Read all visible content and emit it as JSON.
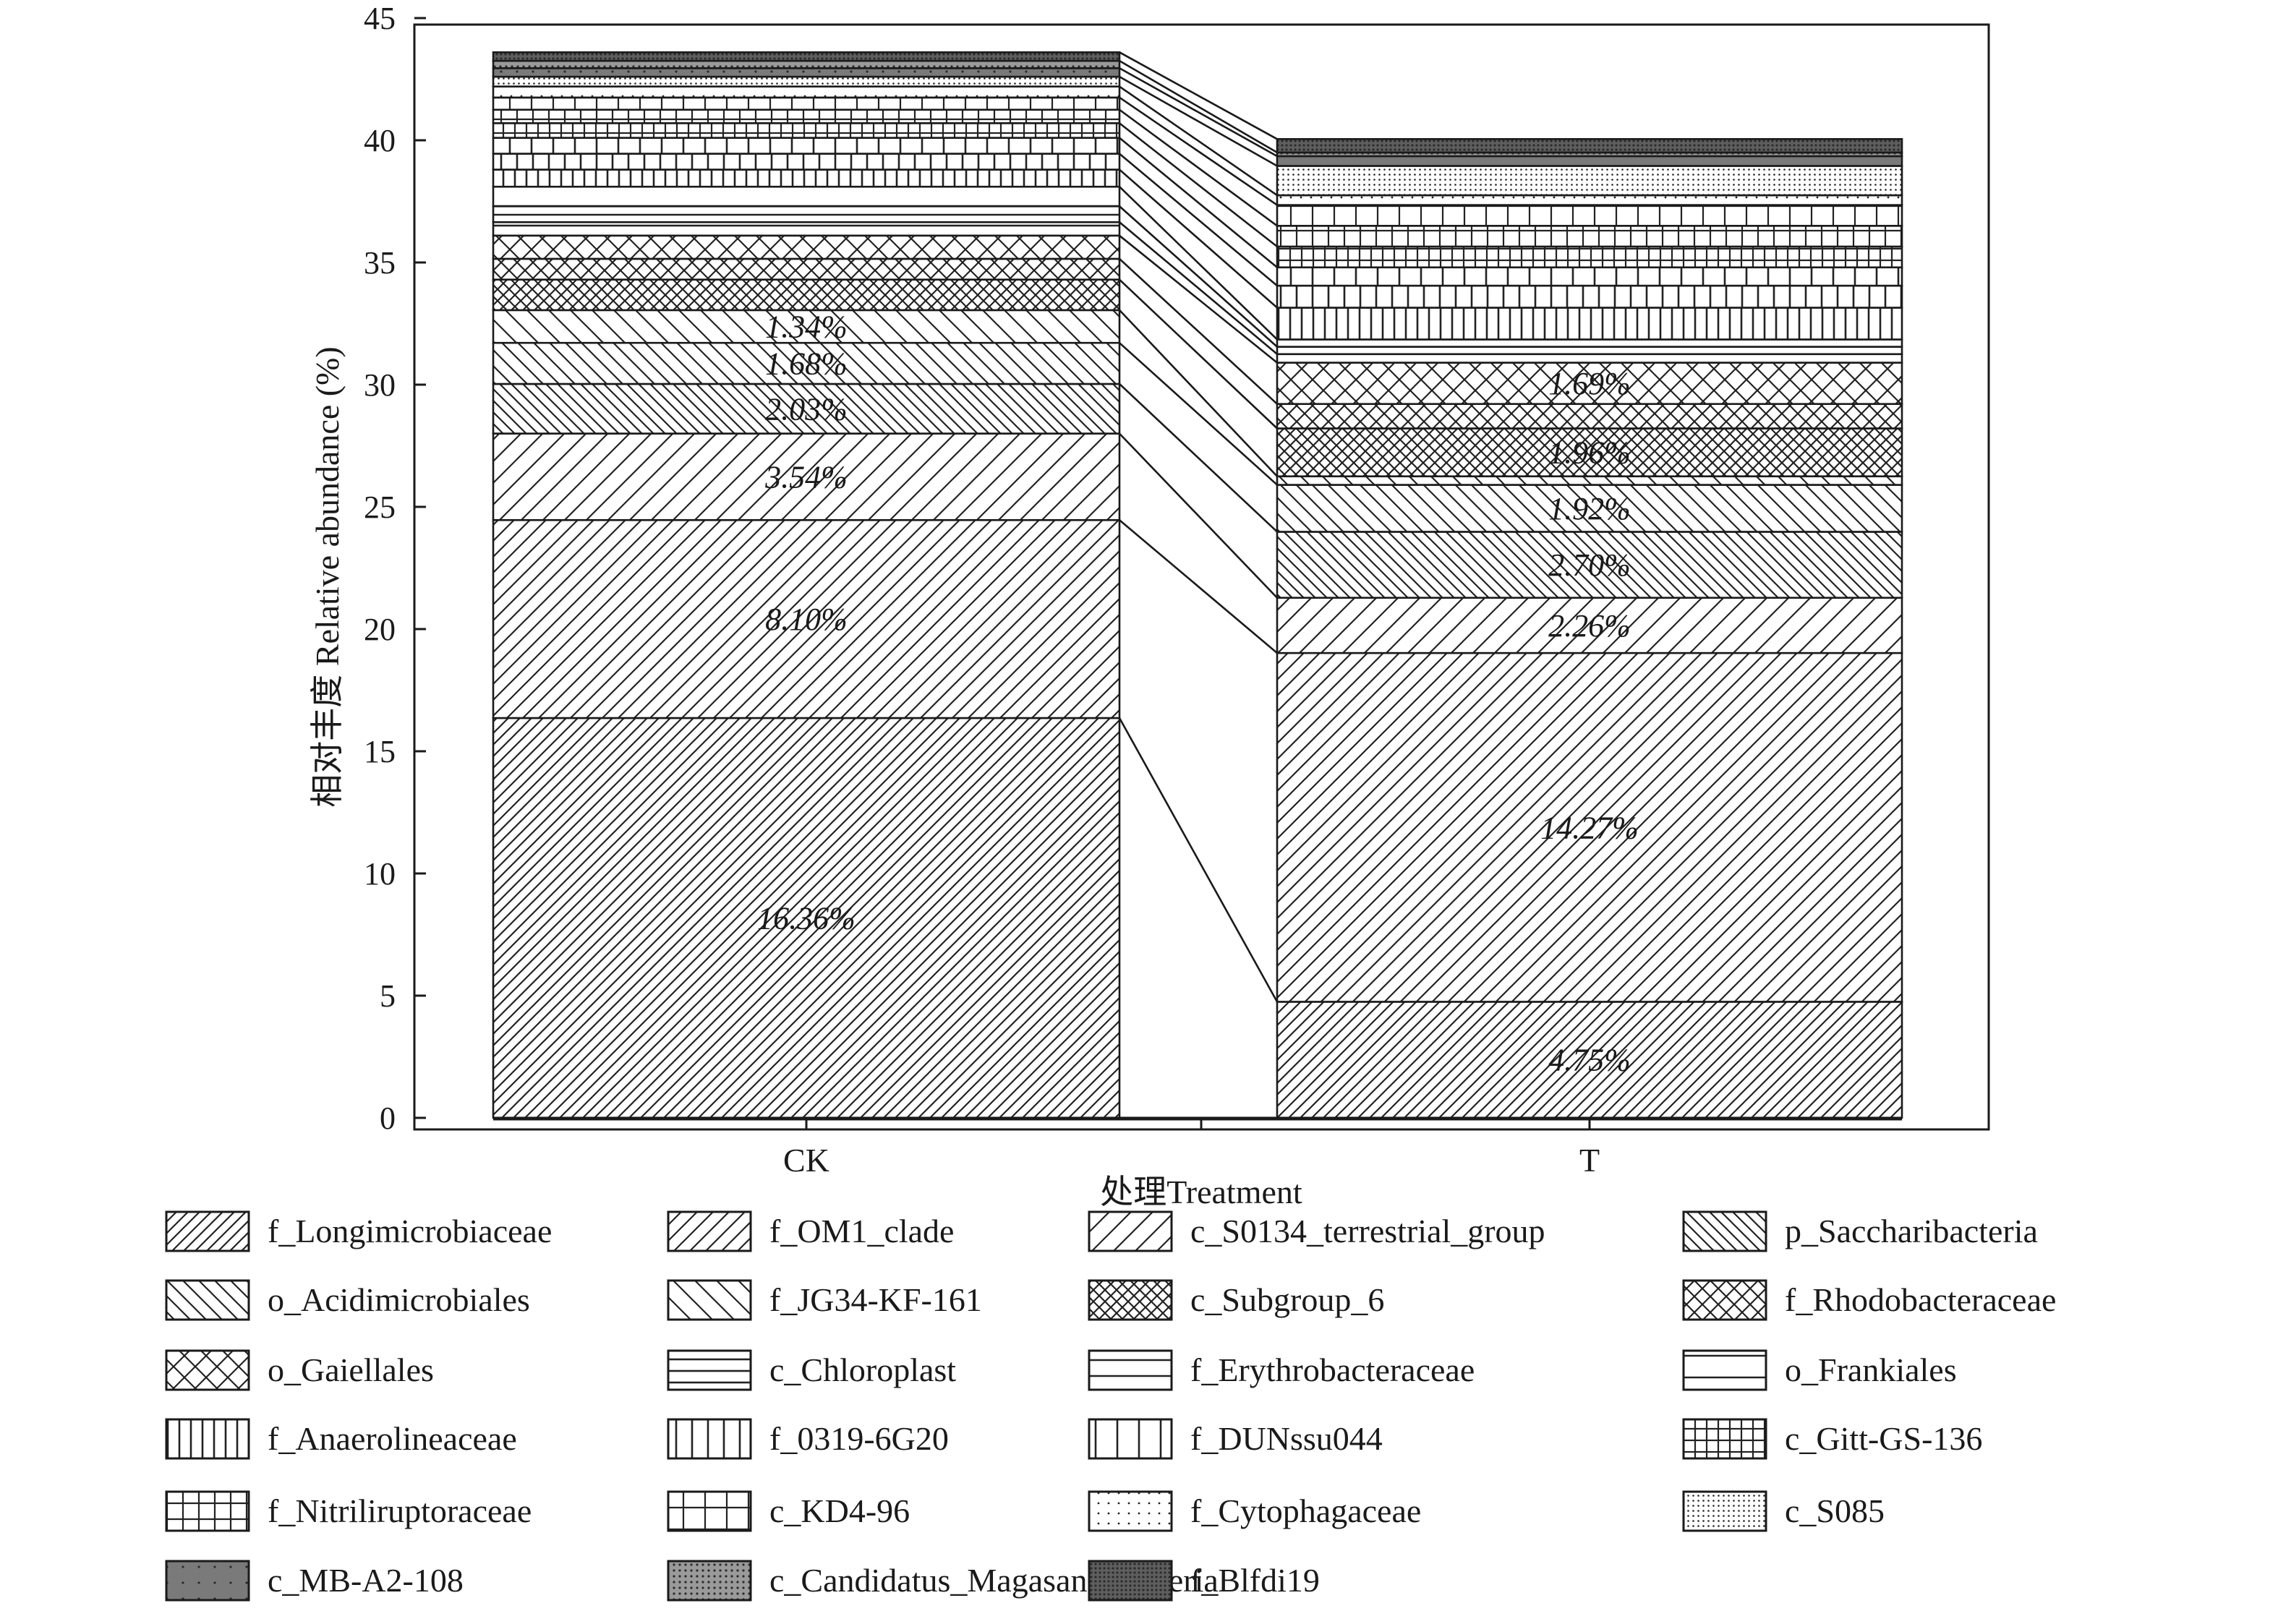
{
  "chart_data": {
    "type": "bar",
    "subtype": "stacked",
    "categories": [
      "CK",
      "T"
    ],
    "xlabel": "处理Treatment",
    "ylabel": "相对丰度 Relative abundance (%)",
    "ylim": [
      0,
      45
    ],
    "yticks": [
      "0",
      "5",
      "10",
      "15",
      "20",
      "25",
      "30",
      "35",
      "40",
      "45"
    ],
    "grid": false,
    "legend_position": "bottom",
    "connect_lines": true,
    "series": [
      {
        "name": "f_Longimicrobiaceae",
        "pattern": "diag-fine",
        "values": [
          16.36,
          4.75
        ],
        "labels": [
          "16.36%",
          "4.75%"
        ]
      },
      {
        "name": "f_OM1_clade",
        "pattern": "diag-medium",
        "values": [
          8.1,
          14.27
        ],
        "labels": [
          "8.10%",
          "14.27%"
        ]
      },
      {
        "name": "c_S0134_terrestrial_group",
        "pattern": "diag-wide",
        "values": [
          3.54,
          2.26
        ],
        "labels": [
          "3.54%",
          "2.26%"
        ]
      },
      {
        "name": "p_Saccharibacteria",
        "pattern": "back-fine",
        "values": [
          2.03,
          2.7
        ],
        "labels": [
          "2.03%",
          "2.70%"
        ]
      },
      {
        "name": "o_Acidimicrobiales",
        "pattern": "back-medium",
        "values": [
          1.68,
          1.92
        ],
        "labels": [
          "1.68%",
          "1.92%"
        ]
      },
      {
        "name": "f_JG34-KF-161",
        "pattern": "back-wide",
        "values": [
          1.34,
          0.35
        ],
        "labels": [
          "1.34%",
          ""
        ]
      },
      {
        "name": "c_Subgroup_6",
        "pattern": "cross-fine",
        "values": [
          1.25,
          1.96
        ],
        "labels": [
          "",
          "1.96%"
        ]
      },
      {
        "name": "f_Rhodobacteraceae",
        "pattern": "cross-medium",
        "values": [
          0.85,
          1.0
        ],
        "labels": [
          "",
          ""
        ]
      },
      {
        "name": "o_Gaiellales",
        "pattern": "cross-wide",
        "values": [
          0.95,
          1.69
        ],
        "labels": [
          "",
          "1.69%"
        ]
      },
      {
        "name": "c_Chloroplast",
        "pattern": "horiz-fine",
        "values": [
          0.55,
          0.35
        ],
        "labels": [
          "",
          ""
        ]
      },
      {
        "name": "f_Erythrobacteraceae",
        "pattern": "horiz-medium",
        "values": [
          0.65,
          0.3
        ],
        "labels": [
          "",
          ""
        ]
      },
      {
        "name": "o_Frankiales",
        "pattern": "horiz-wide",
        "values": [
          0.8,
          0.3
        ],
        "labels": [
          "",
          ""
        ]
      },
      {
        "name": "f_Anaerolineaceae",
        "pattern": "vert-fine",
        "values": [
          0.7,
          1.3
        ],
        "labels": [
          "",
          ""
        ]
      },
      {
        "name": "f_0319-6G20",
        "pattern": "vert-medium",
        "values": [
          0.65,
          0.9
        ],
        "labels": [
          "",
          ""
        ]
      },
      {
        "name": "f_DUNssu044",
        "pattern": "vert-wide",
        "values": [
          0.65,
          0.75
        ],
        "labels": [
          "",
          ""
        ]
      },
      {
        "name": "c_Gitt-GS-136",
        "pattern": "grid-fine",
        "values": [
          0.6,
          0.85
        ],
        "labels": [
          "",
          ""
        ]
      },
      {
        "name": "f_Nitriliruptoraceae",
        "pattern": "grid-medium",
        "values": [
          0.55,
          0.85
        ],
        "labels": [
          "",
          ""
        ]
      },
      {
        "name": "c_KD4-96",
        "pattern": "grid-wide",
        "values": [
          0.5,
          0.85
        ],
        "labels": [
          "",
          ""
        ]
      },
      {
        "name": "f_Cytophagaceae",
        "pattern": "dots-sparse",
        "values": [
          0.45,
          0.4
        ],
        "labels": [
          "",
          ""
        ]
      },
      {
        "name": "c_S085",
        "pattern": "dots-dense",
        "values": [
          0.4,
          1.2
        ],
        "labels": [
          "",
          ""
        ]
      },
      {
        "name": "c_MB-A2-108",
        "pattern": "dark-medium",
        "values": [
          0.35,
          0.4
        ],
        "labels": [
          "",
          ""
        ]
      },
      {
        "name": "c_Candidatus_Magasanikbacteria",
        "pattern": "dark-light",
        "values": [
          0.3,
          0.15
        ],
        "labels": [
          "",
          ""
        ]
      },
      {
        "name": "f_Blfdi19",
        "pattern": "dark-heavy",
        "values": [
          0.35,
          0.55
        ],
        "labels": [
          "",
          ""
        ]
      }
    ]
  }
}
